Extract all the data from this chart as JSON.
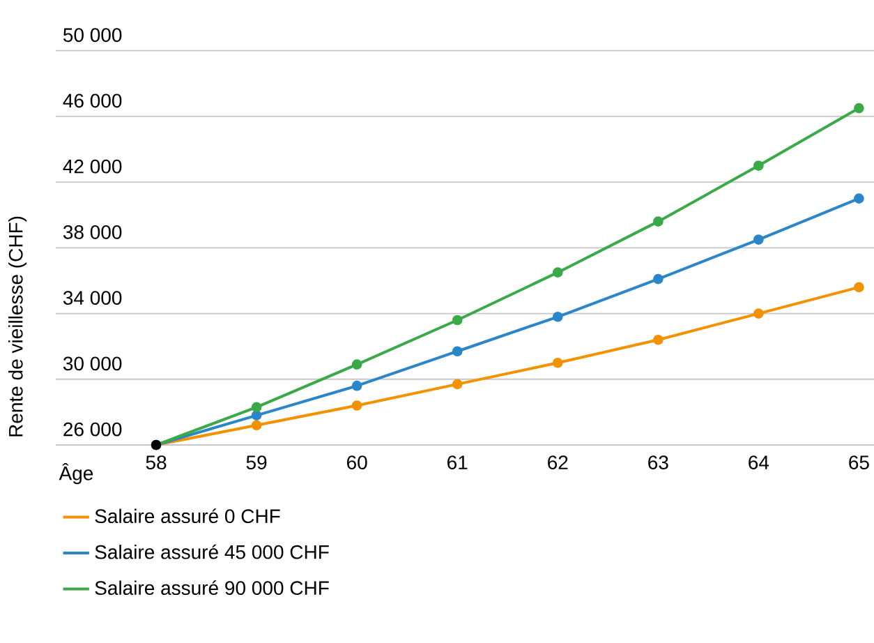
{
  "chart_data": {
    "type": "line",
    "xlabel": "Âge",
    "ylabel": "Rente de vieillesse (CHF)",
    "xlim": [
      57,
      65.15
    ],
    "xticks": [
      58,
      59,
      60,
      61,
      62,
      63,
      64,
      65
    ],
    "ylim": [
      26000,
      50000
    ],
    "yticks": [
      {
        "value": 26000,
        "label": "26 000"
      },
      {
        "value": 30000,
        "label": "30 000"
      },
      {
        "value": 34000,
        "label": "34 000"
      },
      {
        "value": 38000,
        "label": "38 000"
      },
      {
        "value": 42000,
        "label": "42 000"
      },
      {
        "value": 46000,
        "label": "46 000"
      },
      {
        "value": 50000,
        "label": "50 000"
      }
    ],
    "grid": "y",
    "legend": "bottom",
    "marker": "circle",
    "line_style": "solid",
    "series": [
      {
        "name": "Salaire assuré 0 CHF",
        "color": "#f39200",
        "x": [
          58,
          59,
          60,
          61,
          62,
          63,
          64,
          65
        ],
        "values": [
          26000,
          27200,
          28400,
          29700,
          31000,
          32400,
          34000,
          35600
        ]
      },
      {
        "name": "Salaire assuré 45 000 CHF",
        "color": "#2a86c8",
        "x": [
          58,
          59,
          60,
          61,
          62,
          63,
          64,
          65
        ],
        "values": [
          26000,
          27800,
          29600,
          31700,
          33800,
          36100,
          38500,
          41000
        ]
      },
      {
        "name": "Salaire assuré 90 000 CHF",
        "color": "#3aaa48",
        "x": [
          58,
          59,
          60,
          61,
          62,
          63,
          64,
          65
        ],
        "values": [
          26000,
          28300,
          30900,
          33600,
          36500,
          39600,
          43000,
          46500
        ]
      },
      {
        "type": "scatter",
        "color": "#000000",
        "x": [
          58
        ],
        "values": [
          26000
        ]
      }
    ]
  }
}
